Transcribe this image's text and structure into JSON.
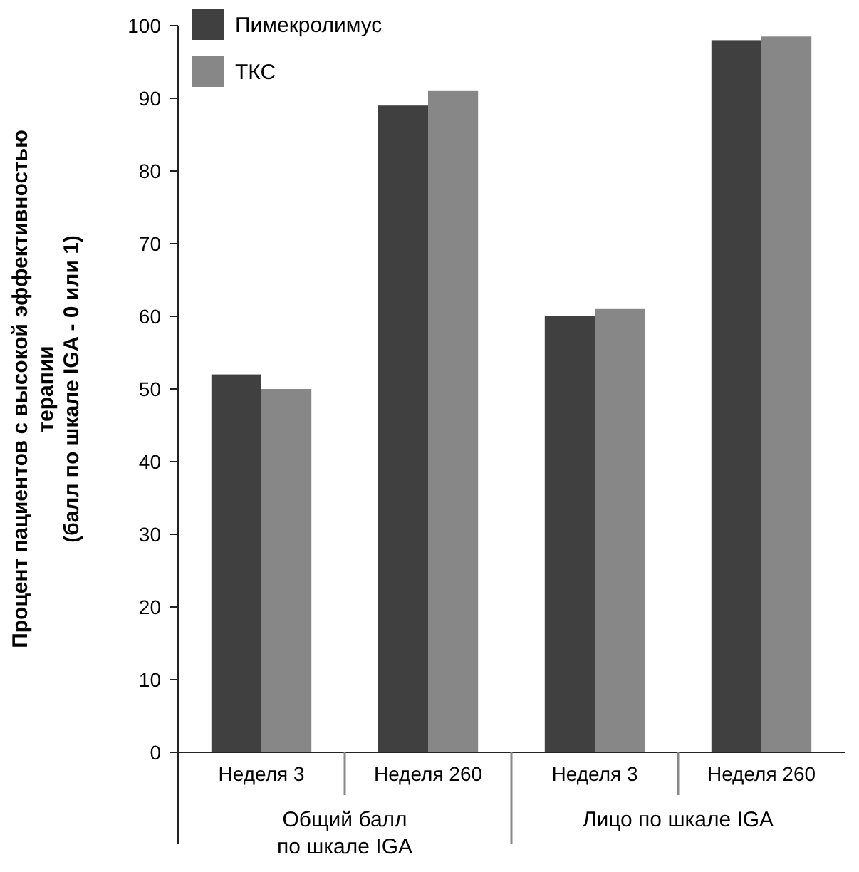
{
  "chart_data": {
    "type": "bar",
    "ylabel": "Процент пациентов с высокой эффективностью\nтерапии\n(балл по шкале IGA - 0 или 1)",
    "categories": [
      "Неделя 3",
      "Неделя 260",
      "Неделя 3",
      "Неделя 260"
    ],
    "series": [
      {
        "name": "Пимекролимус",
        "color": "#404040",
        "values": [
          52,
          89,
          60,
          98
        ]
      },
      {
        "name": "ТКС",
        "color": "#878787",
        "values": [
          50,
          91,
          61,
          98.5
        ]
      }
    ],
    "ylim": [
      0,
      100
    ],
    "yticks": [
      0,
      10,
      20,
      30,
      40,
      50,
      60,
      70,
      80,
      90,
      100
    ],
    "grid": false,
    "legend": "top left",
    "annotations": [
      "Общий балл\nпо шкале IGA",
      "Лицо по шкале IGA"
    ]
  }
}
